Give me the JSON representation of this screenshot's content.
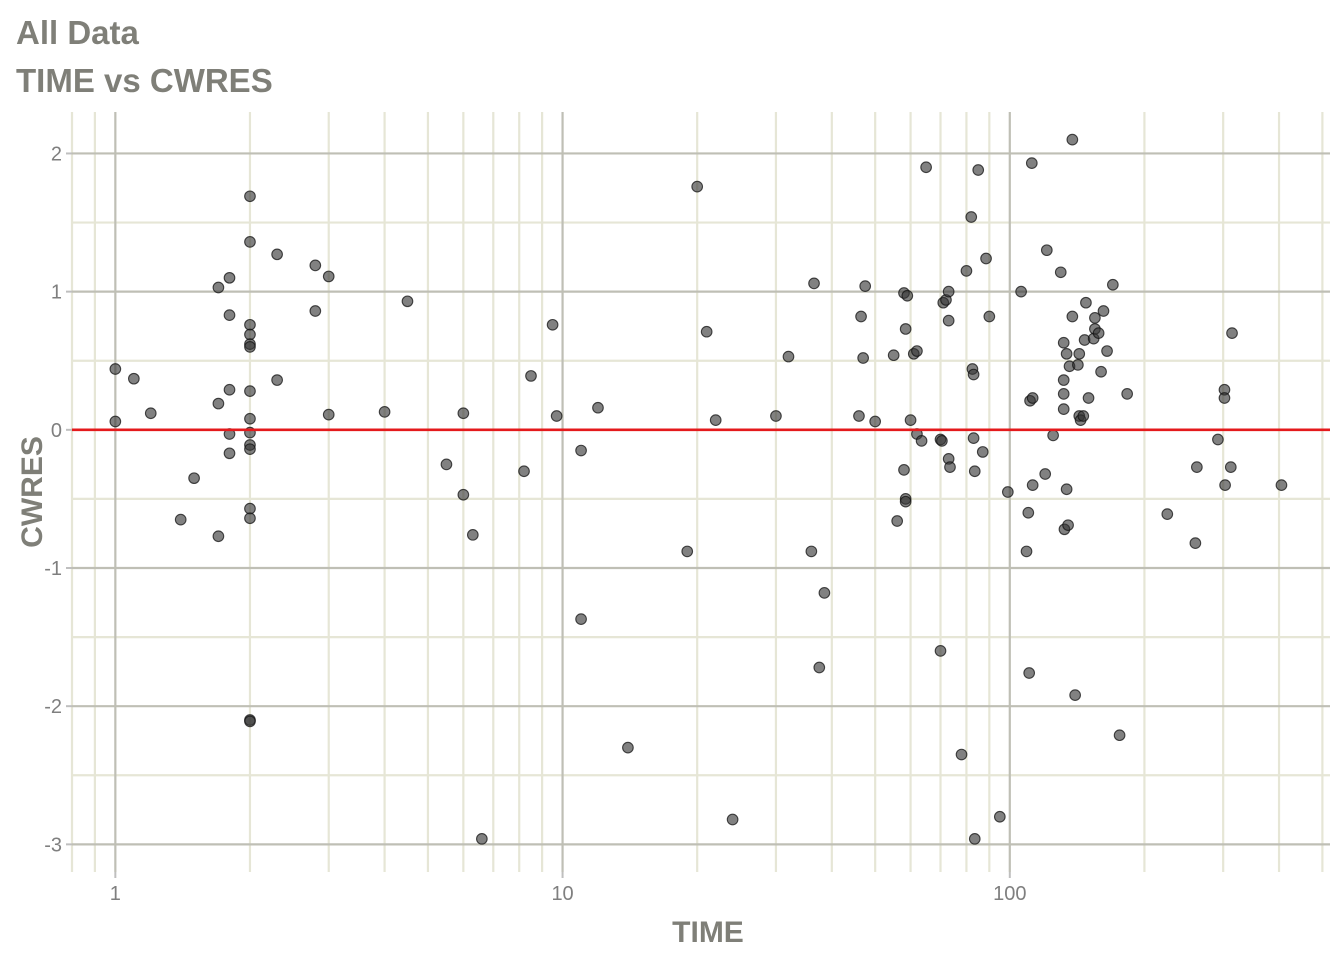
{
  "chart_data": {
    "type": "scatter",
    "title": "All Data",
    "subtitle": "TIME vs CWRES",
    "xlabel": "TIME",
    "ylabel": "CWRES",
    "x_scale": "log10",
    "xlim": [
      0.8,
      520
    ],
    "ylim": [
      -3.2,
      2.3
    ],
    "x_ticks": [
      {
        "value": 1,
        "label": "1"
      },
      {
        "value": 10,
        "label": "10"
      },
      {
        "value": 100,
        "label": "100"
      }
    ],
    "y_ticks": [
      {
        "value": 2,
        "label": "2"
      },
      {
        "value": 1,
        "label": "1"
      },
      {
        "value": 0,
        "label": "0"
      },
      {
        "value": -1,
        "label": "-1"
      },
      {
        "value": -2,
        "label": "-2"
      },
      {
        "value": -3,
        "label": "-3"
      }
    ],
    "reference_line": {
      "y": 0,
      "color": "#e41a1c"
    },
    "grid": true,
    "colors": {
      "point": "#333333",
      "major_grid": "#bfbfb5",
      "minor_grid": "#e6e6d6"
    },
    "points": [
      [
        1.0,
        0.44
      ],
      [
        1.0,
        0.06
      ],
      [
        1.1,
        0.37
      ],
      [
        1.2,
        0.12
      ],
      [
        1.4,
        -0.65
      ],
      [
        1.5,
        -0.35
      ],
      [
        1.7,
        1.03
      ],
      [
        1.7,
        0.19
      ],
      [
        1.7,
        -0.77
      ],
      [
        1.8,
        1.1
      ],
      [
        1.8,
        0.83
      ],
      [
        1.8,
        0.29
      ],
      [
        1.8,
        -0.03
      ],
      [
        1.8,
        -0.17
      ],
      [
        2.0,
        1.69
      ],
      [
        2.0,
        1.36
      ],
      [
        2.0,
        0.76
      ],
      [
        2.0,
        0.69
      ],
      [
        2.0,
        0.62
      ],
      [
        2.0,
        0.6
      ],
      [
        2.0,
        0.28
      ],
      [
        2.0,
        0.08
      ],
      [
        2.0,
        -0.02
      ],
      [
        2.0,
        -0.11
      ],
      [
        2.0,
        -0.14
      ],
      [
        2.0,
        -0.57
      ],
      [
        2.0,
        -0.64
      ],
      [
        2.0,
        -2.1
      ],
      [
        2.0,
        -2.11
      ],
      [
        2.3,
        1.27
      ],
      [
        2.3,
        0.36
      ],
      [
        2.8,
        1.19
      ],
      [
        2.8,
        0.86
      ],
      [
        3.0,
        1.11
      ],
      [
        3.0,
        0.11
      ],
      [
        4.0,
        0.13
      ],
      [
        4.5,
        0.93
      ],
      [
        5.5,
        -0.25
      ],
      [
        6.0,
        0.12
      ],
      [
        6.0,
        -0.47
      ],
      [
        6.3,
        -0.76
      ],
      [
        6.6,
        -2.96
      ],
      [
        8.2,
        -0.3
      ],
      [
        8.5,
        0.39
      ],
      [
        9.5,
        0.76
      ],
      [
        9.7,
        0.1
      ],
      [
        11.0,
        -0.15
      ],
      [
        11.0,
        -1.37
      ],
      [
        12.0,
        0.16
      ],
      [
        14.0,
        -2.3
      ],
      [
        19.0,
        -0.88
      ],
      [
        20.0,
        1.76
      ],
      [
        21.0,
        0.71
      ],
      [
        22.0,
        0.07
      ],
      [
        24.0,
        -2.82
      ],
      [
        30.0,
        0.1
      ],
      [
        32.0,
        0.53
      ],
      [
        36.0,
        -0.88
      ],
      [
        36.5,
        1.06
      ],
      [
        37.5,
        -1.72
      ],
      [
        38.5,
        -1.18
      ],
      [
        46.0,
        0.1
      ],
      [
        46.5,
        0.82
      ],
      [
        47.0,
        0.52
      ],
      [
        47.5,
        1.04
      ],
      [
        50.0,
        0.06
      ],
      [
        55.0,
        0.54
      ],
      [
        56.0,
        -0.66
      ],
      [
        58.0,
        0.99
      ],
      [
        58.0,
        -0.29
      ],
      [
        58.5,
        0.73
      ],
      [
        58.5,
        -0.5
      ],
      [
        58.5,
        -0.52
      ],
      [
        59.0,
        0.97
      ],
      [
        60.0,
        0.07
      ],
      [
        61.0,
        0.55
      ],
      [
        62.0,
        0.57
      ],
      [
        62.0,
        -0.03
      ],
      [
        63.5,
        -0.08
      ],
      [
        65.0,
        1.9
      ],
      [
        70.0,
        -0.07
      ],
      [
        70.0,
        -1.6
      ],
      [
        70.5,
        -0.08
      ],
      [
        71.0,
        0.92
      ],
      [
        72.0,
        0.94
      ],
      [
        73.0,
        1.0
      ],
      [
        73.0,
        0.79
      ],
      [
        73.0,
        -0.21
      ],
      [
        73.5,
        -0.27
      ],
      [
        78.0,
        -2.35
      ],
      [
        80.0,
        1.15
      ],
      [
        82.0,
        1.54
      ],
      [
        82.5,
        0.44
      ],
      [
        83.0,
        0.4
      ],
      [
        83.0,
        -0.06
      ],
      [
        83.5,
        -0.3
      ],
      [
        83.5,
        -2.96
      ],
      [
        85.0,
        1.88
      ],
      [
        87.0,
        -0.16
      ],
      [
        88.5,
        1.24
      ],
      [
        90.0,
        0.82
      ],
      [
        95.0,
        -2.8
      ],
      [
        99.0,
        -0.45
      ],
      [
        106.0,
        1.0
      ],
      [
        109.0,
        -0.88
      ],
      [
        110.0,
        -0.6
      ],
      [
        110.5,
        -1.76
      ],
      [
        111.0,
        0.21
      ],
      [
        112.0,
        1.93
      ],
      [
        112.5,
        0.23
      ],
      [
        112.5,
        -0.4
      ],
      [
        120.0,
        -0.32
      ],
      [
        121.0,
        1.3
      ],
      [
        125.0,
        -0.04
      ],
      [
        130.0,
        1.14
      ],
      [
        132.0,
        0.63
      ],
      [
        132.0,
        0.36
      ],
      [
        132.0,
        0.26
      ],
      [
        132.0,
        0.15
      ],
      [
        132.5,
        -0.72
      ],
      [
        134.0,
        0.55
      ],
      [
        134.0,
        -0.43
      ],
      [
        135.0,
        -0.69
      ],
      [
        136.0,
        0.46
      ],
      [
        138.0,
        2.1
      ],
      [
        138.0,
        0.82
      ],
      [
        140.0,
        -1.92
      ],
      [
        142.0,
        0.47
      ],
      [
        143.0,
        0.55
      ],
      [
        143.0,
        0.1
      ],
      [
        144.0,
        0.07
      ],
      [
        146.0,
        0.1
      ],
      [
        147.0,
        0.65
      ],
      [
        148.0,
        0.92
      ],
      [
        150.0,
        0.23
      ],
      [
        154.0,
        0.66
      ],
      [
        155.0,
        0.73
      ],
      [
        155.0,
        0.81
      ],
      [
        158.0,
        0.7
      ],
      [
        160.0,
        0.42
      ],
      [
        162.0,
        0.86
      ],
      [
        165.0,
        0.57
      ],
      [
        170.0,
        1.05
      ],
      [
        176.0,
        -2.21
      ],
      [
        183.0,
        0.26
      ],
      [
        225.0,
        -0.61
      ],
      [
        260.0,
        -0.82
      ],
      [
        262.0,
        -0.27
      ],
      [
        292.0,
        -0.07
      ],
      [
        302.0,
        0.29
      ],
      [
        302.0,
        0.23
      ],
      [
        303.0,
        -0.4
      ],
      [
        312.0,
        -0.27
      ],
      [
        314.0,
        0.7
      ],
      [
        405.0,
        -0.4
      ]
    ]
  }
}
